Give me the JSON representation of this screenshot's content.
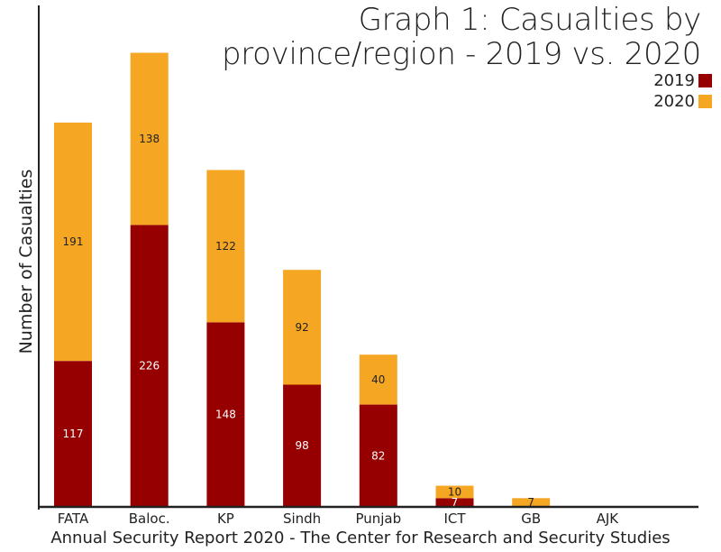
{
  "chart_data": {
    "type": "bar",
    "stacked": true,
    "title_line1": "Graph 1: Casualties by",
    "title_line2": "province/region - 2019 vs. 2020",
    "ylabel": "Number of Casualties",
    "xlabel": "",
    "source": "Annual Security Report 2020 - The Center for Research and Security Studies",
    "categories": [
      "FATA",
      "Baloc.",
      "KP",
      "Sindh",
      "Punjab",
      "ICT",
      "GB",
      "AJK"
    ],
    "series": [
      {
        "name": "2019",
        "color": "#960000",
        "label_color": "#ffffff",
        "values": [
          117,
          226,
          148,
          98,
          82,
          7,
          0,
          0
        ]
      },
      {
        "name": "2020",
        "color": "#f5a623",
        "label_color": "#222222",
        "values": [
          191,
          138,
          122,
          92,
          40,
          10,
          7,
          0
        ]
      }
    ],
    "ylim": [
      0,
      400
    ],
    "grid": false,
    "legend_position": "top-right"
  }
}
